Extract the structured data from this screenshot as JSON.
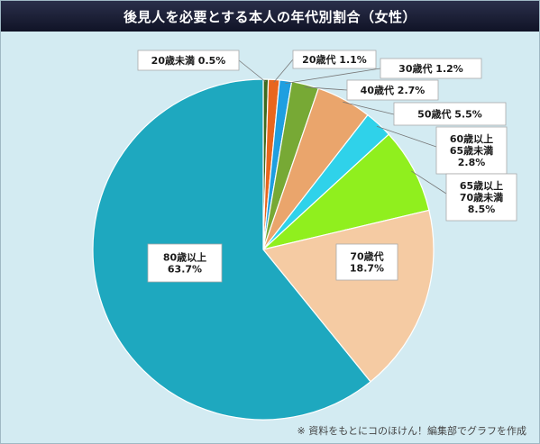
{
  "title": "後見人を必要とする本人の年代別割合（女性）",
  "footer": "※ 資料をもとにコのほけん！編集部でグラフを作成",
  "chart_data": {
    "type": "pie",
    "title": "後見人を必要とする本人の年代別割合（女性）",
    "slices": [
      {
        "lines": [
          "20歳未満 0.5%"
        ],
        "value": 0.5,
        "color": "#3d6b1f"
      },
      {
        "lines": [
          "20歳代 1.1%"
        ],
        "value": 1.1,
        "color": "#e8661e"
      },
      {
        "lines": [
          "30歳代 1.2%"
        ],
        "value": 1.2,
        "color": "#1f9fe0"
      },
      {
        "lines": [
          "40歳代 2.7%"
        ],
        "value": 2.7,
        "color": "#77a935"
      },
      {
        "lines": [
          "50歳代 5.5%"
        ],
        "value": 5.5,
        "color": "#eaa56c"
      },
      {
        "lines": [
          "60歳以上",
          "65歳未満",
          "2.8%"
        ],
        "value": 2.8,
        "color": "#2fd2ea"
      },
      {
        "lines": [
          "65歳以上",
          "70歳未満",
          "8.5%"
        ],
        "value": 8.5,
        "color": "#90ef1e"
      },
      {
        "lines": [
          "70歳代",
          "18.7%"
        ],
        "value": 18.7,
        "color": "#f5cba3"
      },
      {
        "lines": [
          "80歳以上",
          "63.7%"
        ],
        "value": 63.7,
        "color": "#1ea8bf"
      }
    ]
  }
}
